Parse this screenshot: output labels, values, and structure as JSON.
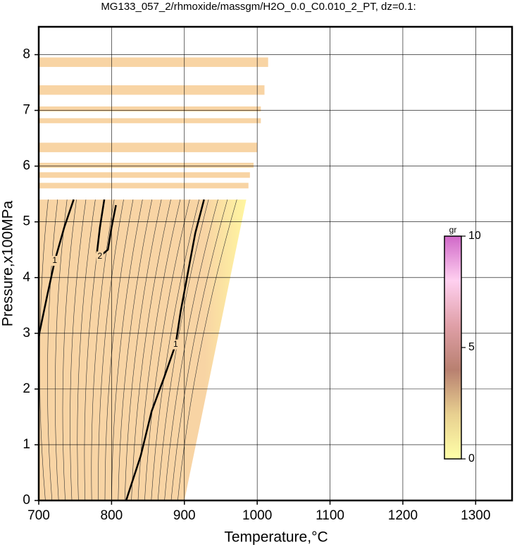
{
  "chart_data": {
    "type": "contour",
    "title": "MG133_057_2/rhmoxide/massgm/H2O_0.0_C0.010_2_PT, dz=0.1:",
    "xlabel": "Temperature,°C",
    "ylabel": "Pressure,x100MPa",
    "xlim": [
      700,
      1350
    ],
    "ylim": [
      0,
      8.5
    ],
    "xticks": [
      700,
      800,
      900,
      1000,
      1100,
      1200,
      1300
    ],
    "yticks": [
      0,
      1,
      2,
      3,
      4,
      5,
      6,
      7,
      8
    ],
    "grid": true,
    "fill_color": "#f8d4a4",
    "edge_color": "#fff6a0",
    "region": {
      "x": [
        700,
        900,
        985,
        700
      ],
      "y": [
        0,
        0,
        5.4,
        5.4
      ]
    },
    "bands": [
      {
        "ymin": 7.78,
        "ymax": 7.95,
        "xmax": 1015
      },
      {
        "ymin": 7.28,
        "ymax": 7.45,
        "xmax": 1010
      },
      {
        "ymin": 6.98,
        "ymax": 7.07,
        "xmax": 1005
      },
      {
        "ymin": 6.77,
        "ymax": 6.86,
        "xmax": 1005
      },
      {
        "ymin": 6.25,
        "ymax": 6.42,
        "xmax": 1000
      },
      {
        "ymin": 5.97,
        "ymax": 6.06,
        "xmax": 995
      },
      {
        "ymin": 5.79,
        "ymax": 5.89,
        "xmax": 990
      },
      {
        "ymin": 5.6,
        "ymax": 5.7,
        "xmax": 988
      }
    ],
    "contours": [
      {
        "level": 1,
        "x": [
          748,
          735,
          722,
          712,
          700
        ],
        "y": [
          5.4,
          4.9,
          4.3,
          3.7,
          2.95
        ]
      },
      {
        "level": 2,
        "x": [
          790,
          784,
          780,
          784,
          795,
          800,
          806
        ],
        "y": [
          5.4,
          4.9,
          4.45,
          4.38,
          4.5,
          4.9,
          5.3
        ]
      },
      {
        "level": 1,
        "x": [
          820,
          840,
          855,
          872,
          888,
          895,
          905,
          915,
          927
        ],
        "y": [
          0,
          0.8,
          1.6,
          2.2,
          2.8,
          3.4,
          4.1,
          4.8,
          5.4
        ]
      }
    ],
    "colorbar": {
      "label": "gr",
      "lim": [
        0,
        10
      ],
      "ticks": [
        0,
        5,
        10
      ],
      "colors": [
        "#ffffa8",
        "#e8d090",
        "#b88070",
        "#e0a0a8",
        "#ffd0f0",
        "#d068c8"
      ]
    }
  }
}
